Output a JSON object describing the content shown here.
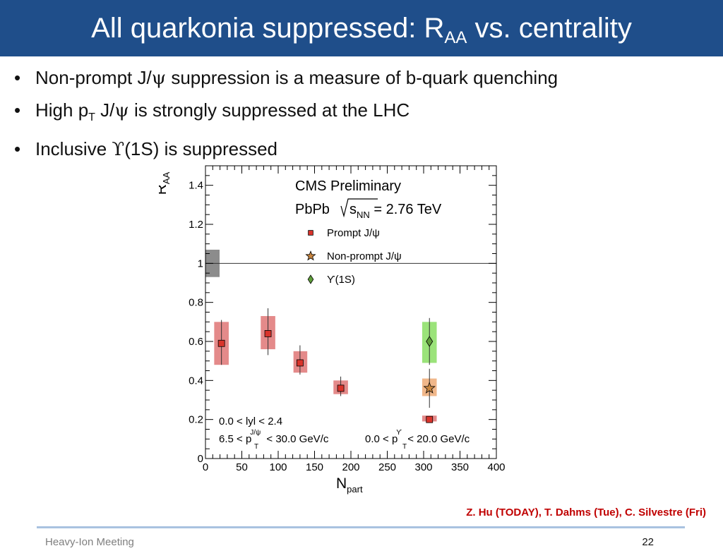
{
  "slide": {
    "title": "All quarkonia suppressed: R",
    "title_sub": "AA",
    "title_tail": " vs. centrality",
    "bullets": [
      {
        "bullet": "•",
        "pre": "Non-prompt J/",
        "sym": "ψ",
        "post": " suppression is a measure of b-quark quenching"
      },
      {
        "bullet": "•",
        "pre": "High p",
        "sub": "T",
        "mid": " J/",
        "sym": "ψ",
        "post": " is strongly suppressed at the LHC"
      },
      {
        "bullet": "•",
        "pre": "Inclusive ",
        "sym": "ϒ",
        "post": "(1S) is suppressed"
      }
    ],
    "credit": "Z. Hu (TODAY), T. Dahms (Tue), C. Silvestre (Fri)",
    "footer": "Heavy-Ion Meeting",
    "page_number": "22"
  },
  "colors": {
    "title_bar": "#1f4e8a",
    "prompt_box": "#e48a8a",
    "prompt_marker": "#d9342b",
    "nonprompt_box": "#f0b78a",
    "nonprompt_marker": "#c8853f",
    "upsilon_box": "#9be37a",
    "upsilon_marker": "#5f9e3a",
    "global_box": "#8c8c8c"
  },
  "chart_data": {
    "type": "scatter",
    "xlabel": "N",
    "xlabel_sub": "part",
    "ylabel": "R",
    "ylabel_sub": "AA",
    "xlim": [
      0,
      400
    ],
    "ylim": [
      0,
      1.5
    ],
    "x_ticks": [
      0,
      50,
      100,
      150,
      200,
      250,
      300,
      350,
      400
    ],
    "y_ticks": [
      0,
      0.2,
      0.4,
      0.6,
      0.8,
      1,
      1.2,
      1.4
    ],
    "x_tick_labels": [
      "0",
      "50",
      "100",
      "150",
      "200",
      "250",
      "300",
      "350",
      "400"
    ],
    "y_tick_labels": [
      "0",
      "0.2",
      "0.4",
      "0.6",
      "0.8",
      "1",
      "1.2",
      "1.4"
    ],
    "reference_line": 1,
    "global_uncertainty": [
      0.93,
      1.07
    ],
    "annotations": {
      "experiment": "CMS Preliminary",
      "system": "PbPb",
      "energy_prefix": "s",
      "energy_sub": "NN",
      "energy_value": " = 2.76 TeV",
      "rapidity": "0.0 < lyl < 2.4",
      "pt_jpsi_pre": "6.5 < p",
      "pt_jpsi_sup": "J/ψ",
      "pt_jpsi_sub": "T",
      "pt_jpsi_post": " < 30.0 GeV/c",
      "pt_ups_pre": "0.0 < p",
      "pt_ups_sup": "ϒ",
      "pt_ups_sub": "T",
      "pt_ups_post": " < 20.0 GeV/c"
    },
    "series": [
      {
        "name": "Prompt J/ψ",
        "marker": "square",
        "points": [
          {
            "x": 22,
            "y": 0.59,
            "stat": [
              0.48,
              0.71
            ],
            "syst": [
              0.48,
              0.7
            ],
            "box_x": [
              12,
              32
            ]
          },
          {
            "x": 86,
            "y": 0.64,
            "stat": [
              0.53,
              0.77
            ],
            "syst": [
              0.56,
              0.73
            ],
            "box_x": [
              76,
              96
            ]
          },
          {
            "x": 130,
            "y": 0.49,
            "stat": [
              0.43,
              0.58
            ],
            "syst": [
              0.44,
              0.55
            ],
            "box_x": [
              121,
              140
            ]
          },
          {
            "x": 186,
            "y": 0.36,
            "stat": [
              0.32,
              0.42
            ],
            "syst": [
              0.33,
              0.4
            ],
            "box_x": [
              176,
              196
            ]
          },
          {
            "x": 308,
            "y": 0.2,
            "stat": [
              0.19,
              0.21
            ],
            "syst": [
              0.19,
              0.22
            ],
            "box_x": [
              298,
              318
            ]
          }
        ]
      },
      {
        "name": "Non-prompt J/ψ",
        "marker": "star",
        "points": [
          {
            "x": 308,
            "y": 0.36,
            "stat": [
              0.26,
              0.46
            ],
            "syst": [
              0.32,
              0.41
            ],
            "box_x": [
              298,
              318
            ]
          }
        ]
      },
      {
        "name": "ϒ(1S)",
        "marker": "diamond",
        "points": [
          {
            "x": 308,
            "y": 0.6,
            "stat": [
              0.48,
              0.72
            ],
            "syst": [
              0.49,
              0.7
            ],
            "box_x": [
              298,
              318
            ]
          }
        ]
      }
    ]
  }
}
